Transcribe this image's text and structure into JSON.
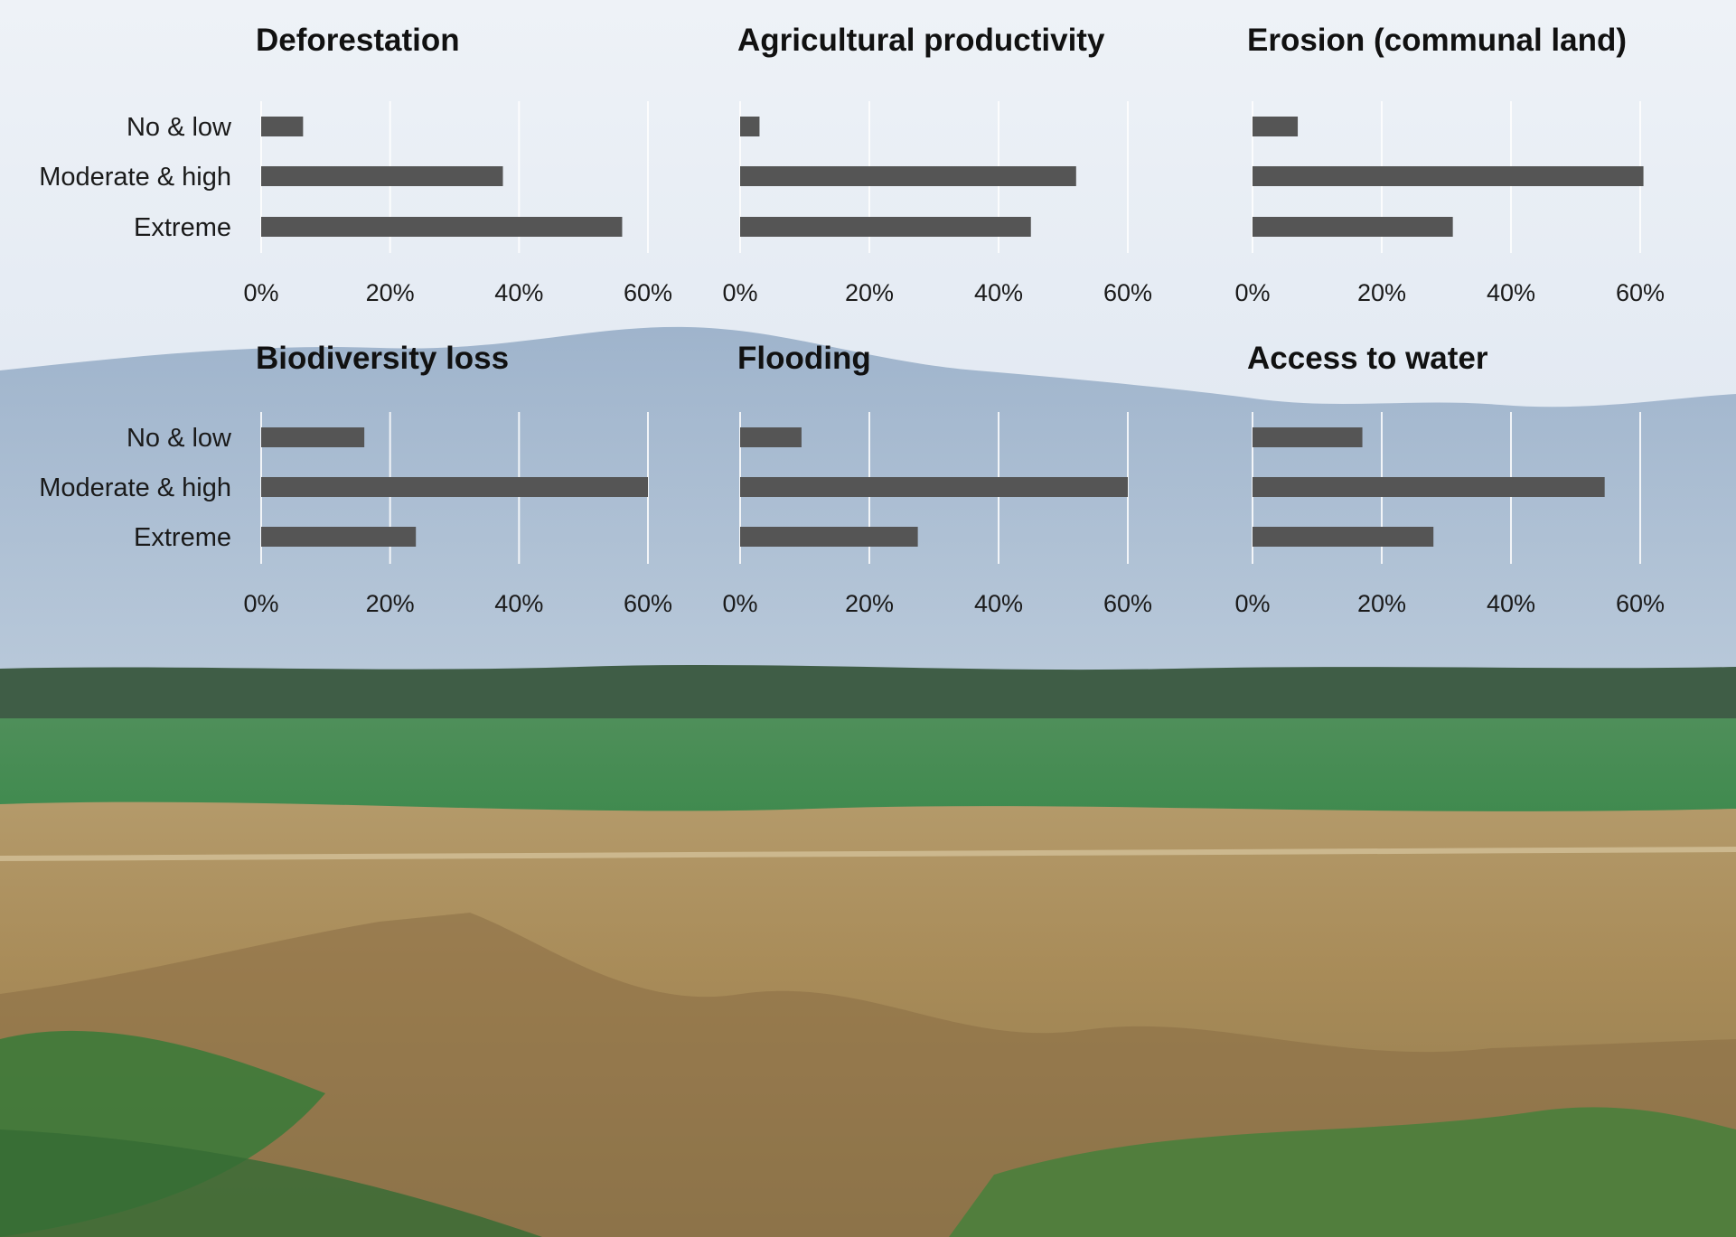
{
  "chart_data": [
    {
      "type": "bar",
      "orientation": "horizontal",
      "title": "Deforestation",
      "categories": [
        "No & low",
        "Moderate & high",
        "Extreme"
      ],
      "values": [
        6.5,
        37.5,
        56
      ],
      "xlim": [
        0,
        60
      ],
      "xticks": [
        "0%",
        "20%",
        "40%",
        "60%"
      ],
      "grid": true,
      "bar_color": "#555555"
    },
    {
      "type": "bar",
      "orientation": "horizontal",
      "title": "Agricultural productivity",
      "categories": [
        "No & low",
        "Moderate & high",
        "Extreme"
      ],
      "values": [
        3,
        52,
        45
      ],
      "xlim": [
        0,
        60
      ],
      "xticks": [
        "0%",
        "20%",
        "40%",
        "60%"
      ],
      "grid": true,
      "bar_color": "#555555"
    },
    {
      "type": "bar",
      "orientation": "horizontal",
      "title": "Erosion (communal land)",
      "categories": [
        "No & low",
        "Moderate & high",
        "Extreme"
      ],
      "values": [
        7,
        60.5,
        31
      ],
      "xlim": [
        0,
        60
      ],
      "xticks": [
        "0%",
        "20%",
        "40%",
        "60%"
      ],
      "grid": true,
      "bar_color": "#555555"
    },
    {
      "type": "bar",
      "orientation": "horizontal",
      "title": "Biodiversity loss",
      "categories": [
        "No & low",
        "Moderate & high",
        "Extreme"
      ],
      "values": [
        16,
        60,
        24
      ],
      "xlim": [
        0,
        60
      ],
      "xticks": [
        "0%",
        "20%",
        "40%",
        "60%"
      ],
      "grid": true,
      "bar_color": "#555555"
    },
    {
      "type": "bar",
      "orientation": "horizontal",
      "title": "Flooding",
      "categories": [
        "No & low",
        "Moderate & high",
        "Extreme"
      ],
      "values": [
        9.5,
        60,
        27.5
      ],
      "xlim": [
        0,
        60
      ],
      "xticks": [
        "0%",
        "20%",
        "40%",
        "60%"
      ],
      "grid": true,
      "bar_color": "#555555"
    },
    {
      "type": "bar",
      "orientation": "horizontal",
      "title": "Access to water",
      "categories": [
        "No & low",
        "Moderate & high",
        "Extreme"
      ],
      "values": [
        17,
        54.5,
        28
      ],
      "xlim": [
        0,
        60
      ],
      "xticks": [
        "0%",
        "20%",
        "40%",
        "60%"
      ],
      "grid": true,
      "bar_color": "#555555"
    }
  ]
}
